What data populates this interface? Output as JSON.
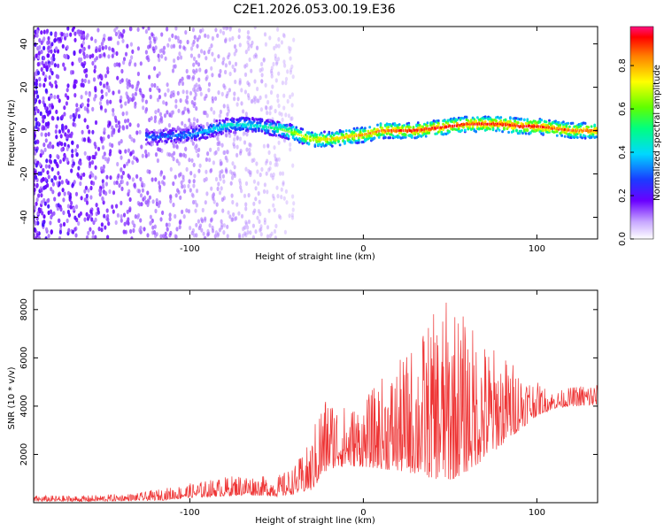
{
  "title": "C2E1.2026.053.00.19.E36",
  "chart_data": [
    {
      "type": "heatmap",
      "xlabel": "Height of straight line (km)",
      "ylabel": "Frequency (Hz)",
      "xlim": [
        -190,
        135
      ],
      "ylim": [
        -50,
        48
      ],
      "xticks": [
        -100,
        0,
        100
      ],
      "yticks": [
        -40,
        -20,
        0,
        20,
        40
      ],
      "colorbar": {
        "label": "Normalized spectral amplitude",
        "range": [
          0,
          0.98
        ],
        "ticks": [
          "0.0",
          "0.2",
          "0.4",
          "0.6",
          "0.8"
        ]
      },
      "ridge": {
        "x": [
          -120,
          -100,
          -90,
          -80,
          -70,
          -60,
          -50,
          -40,
          -30,
          -20,
          -10,
          0,
          10,
          20,
          30,
          40,
          50,
          60,
          70,
          80,
          90,
          100,
          110,
          120,
          130
        ],
        "freq": [
          -3,
          -2,
          0,
          2,
          3,
          2,
          1,
          -1,
          -4,
          -4,
          -3,
          -2,
          0,
          0,
          0,
          1,
          2,
          3,
          3,
          3,
          2,
          2,
          1,
          0,
          0
        ],
        "peak_amplitude": [
          0.3,
          0.35,
          0.4,
          0.45,
          0.45,
          0.45,
          0.55,
          0.7,
          0.75,
          0.78,
          0.8,
          0.85,
          0.9,
          0.92,
          0.95,
          0.95,
          0.95,
          0.95,
          0.95,
          0.95,
          0.95,
          0.95,
          0.9,
          0.9,
          0.88
        ]
      }
    },
    {
      "type": "line",
      "xlabel": "Height of straight line (km)",
      "ylabel": "SNR (10 * v/v)",
      "xlim": [
        -190,
        135
      ],
      "ylim": [
        0,
        8800
      ],
      "xticks": [
        -100,
        0,
        100
      ],
      "yticks": [
        2000,
        4000,
        6000,
        8000
      ],
      "series": [
        {
          "name": "SNR",
          "color": "#ee3333",
          "envelope_x": [
            -190,
            -160,
            -130,
            -115,
            -100,
            -85,
            -70,
            -60,
            -50,
            -40,
            -30,
            -25,
            -20,
            -10,
            0,
            10,
            20,
            30,
            40,
            50,
            60,
            70,
            80,
            90,
            100,
            110,
            120,
            130,
            135
          ],
          "low": [
            50,
            50,
            80,
            100,
            200,
            250,
            300,
            300,
            250,
            350,
            500,
            900,
            1400,
            1500,
            1500,
            1400,
            1300,
            1200,
            1000,
            900,
            1300,
            1800,
            2400,
            3000,
            3600,
            3900,
            4000,
            4000,
            4000
          ],
          "high": [
            300,
            300,
            400,
            600,
            800,
            1000,
            1200,
            1100,
            1100,
            1500,
            2600,
            4300,
            4600,
            4000,
            4200,
            5200,
            5800,
            6800,
            7800,
            8600,
            7600,
            6800,
            6200,
            5700,
            5000,
            4600,
            4800,
            5000,
            5000
          ]
        }
      ]
    }
  ]
}
